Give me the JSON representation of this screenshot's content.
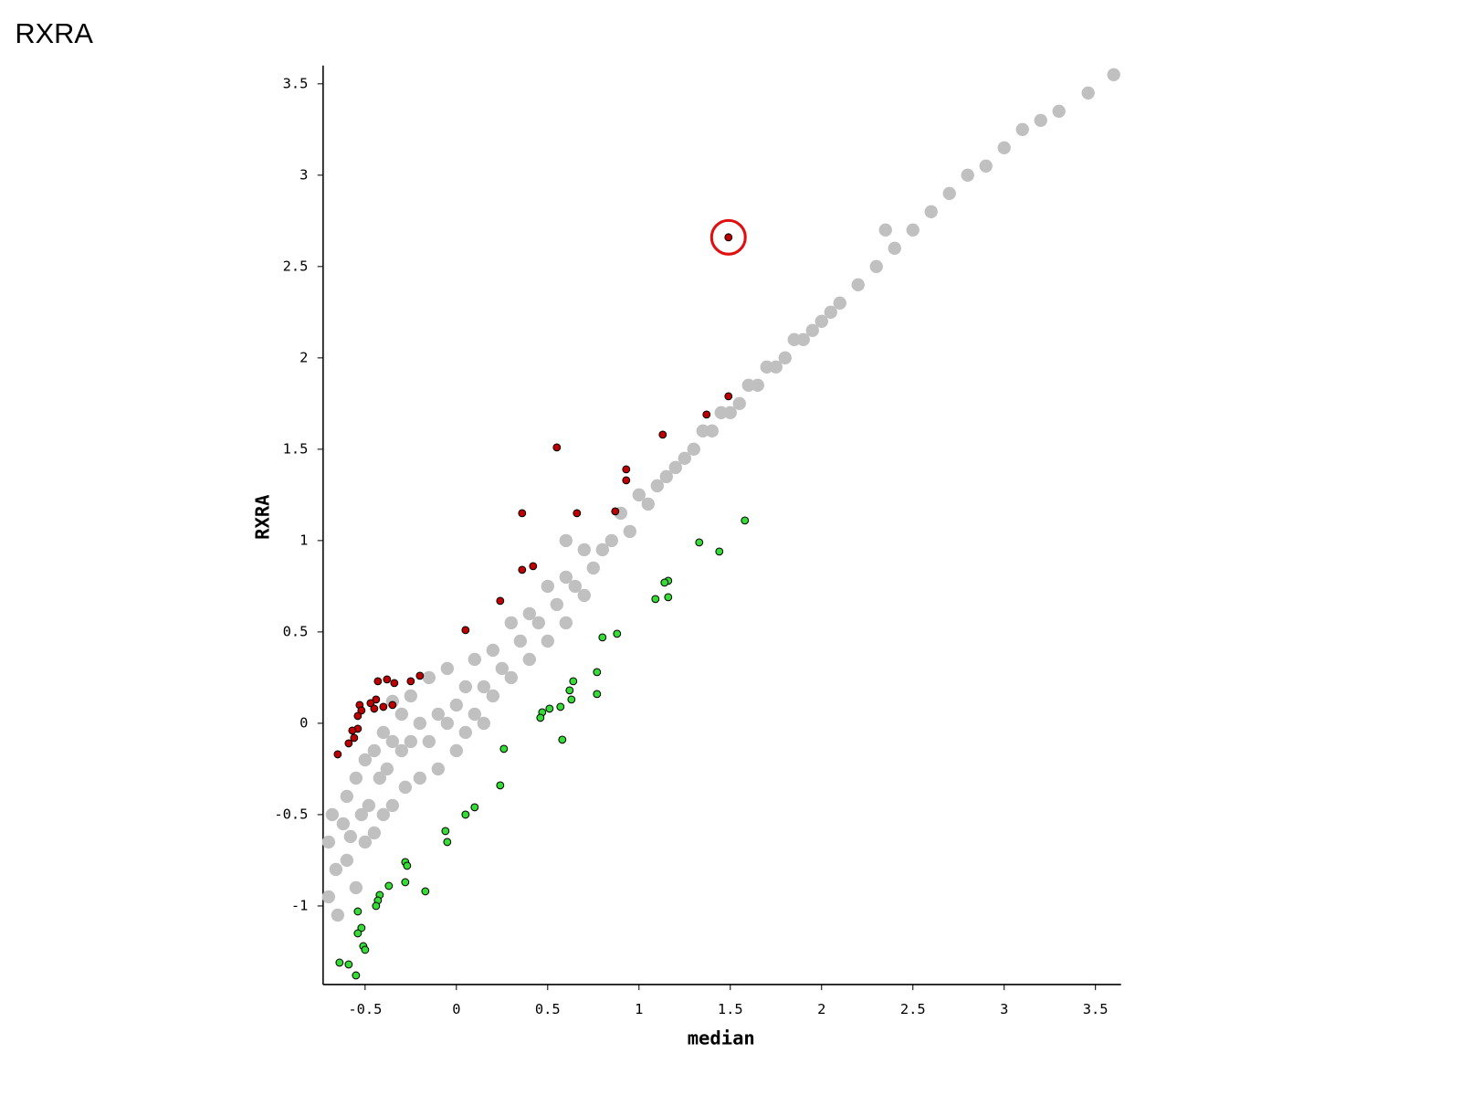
{
  "chart_data": {
    "type": "scatter",
    "title": "RXRA",
    "xlabel": "median",
    "ylabel": "RXRA",
    "xlim": [
      -0.73,
      3.64
    ],
    "ylim": [
      -1.43,
      3.6
    ],
    "xticks": [
      -0.5,
      0,
      0.5,
      1,
      1.5,
      2,
      2.5,
      3,
      3.5
    ],
    "yticks": [
      -1,
      -0.5,
      0,
      0.5,
      1,
      1.5,
      2,
      2.5,
      3,
      3.5
    ],
    "series": [
      {
        "color": "#c0c0c0",
        "edgecolor": "none",
        "x": [
          -0.7,
          -0.68,
          -0.66,
          -0.65,
          -0.62,
          -0.6,
          -0.6,
          -0.58,
          -0.55,
          -0.55,
          -0.52,
          -0.5,
          -0.5,
          -0.48,
          -0.45,
          -0.45,
          -0.42,
          -0.4,
          -0.4,
          -0.38,
          -0.35,
          -0.35,
          -0.3,
          -0.3,
          -0.28,
          -0.25,
          -0.25,
          -0.2,
          -0.2,
          -0.15,
          -0.15,
          -0.1,
          -0.1,
          -0.05,
          -0.05,
          0,
          0,
          0.05,
          0.05,
          0.1,
          0.1,
          0.15,
          0.15,
          0.2,
          0.2,
          0.25,
          0.3,
          0.3,
          0.35,
          0.4,
          0.4,
          0.45,
          0.5,
          0.5,
          0.55,
          0.6,
          0.6,
          0.65,
          0.7,
          0.7,
          0.75,
          0.8,
          0.85,
          0.9,
          0.95,
          1.0,
          1.05,
          1.1,
          1.15,
          1.2,
          1.25,
          1.3,
          1.35,
          1.4,
          1.45,
          1.5,
          1.55,
          1.6,
          1.65,
          1.7,
          1.75,
          1.8,
          1.85,
          1.9,
          1.95,
          2.0,
          2.05,
          2.1,
          2.2,
          2.3,
          2.4,
          2.5,
          2.6,
          2.7,
          2.8,
          2.9,
          3.0,
          3.1,
          3.2,
          3.3,
          3.46,
          3.6,
          -0.35,
          0.6,
          2.35,
          -0.7
        ],
        "y": [
          -0.65,
          -0.5,
          -0.8,
          -1.05,
          -0.55,
          -0.4,
          -0.75,
          -0.62,
          -0.3,
          -0.9,
          -0.5,
          -0.2,
          -0.65,
          -0.45,
          -0.15,
          -0.6,
          -0.3,
          -0.05,
          -0.5,
          -0.25,
          -0.1,
          -0.45,
          -0.15,
          0.05,
          -0.35,
          -0.1,
          0.15,
          0.0,
          -0.3,
          0.25,
          -0.1,
          0.05,
          -0.25,
          0.3,
          0.0,
          0.1,
          -0.15,
          0.2,
          -0.05,
          0.35,
          0.05,
          0.2,
          0.0,
          0.4,
          0.15,
          0.3,
          0.55,
          0.25,
          0.45,
          0.6,
          0.35,
          0.55,
          0.75,
          0.45,
          0.65,
          0.8,
          0.55,
          0.75,
          0.95,
          0.7,
          0.85,
          0.95,
          1.0,
          1.15,
          1.05,
          1.25,
          1.2,
          1.3,
          1.35,
          1.4,
          1.45,
          1.5,
          1.6,
          1.6,
          1.7,
          1.7,
          1.75,
          1.85,
          1.85,
          1.95,
          1.95,
          2.0,
          2.1,
          2.1,
          2.15,
          2.2,
          2.25,
          2.3,
          2.4,
          2.5,
          2.6,
          2.7,
          2.8,
          2.9,
          3.0,
          3.05,
          3.15,
          3.25,
          3.3,
          3.35,
          3.45,
          3.55,
          0.12,
          1.0,
          2.7,
          -0.95
        ]
      },
      {
        "color": "#c00000",
        "edgecolor": "#000000",
        "x": [
          1.49,
          1.49,
          1.37,
          1.13,
          0.55,
          0.93,
          0.93,
          0.36,
          0.66,
          0.87,
          0.42,
          0.36,
          0.24,
          0.05,
          -0.2,
          -0.25,
          -0.38,
          -0.43,
          -0.34,
          -0.44,
          -0.47,
          -0.53,
          -0.35,
          -0.4,
          -0.45,
          -0.52,
          -0.54,
          -0.54,
          -0.57,
          -0.56,
          -0.59,
          -0.65
        ],
        "y": [
          2.66,
          1.79,
          1.69,
          1.58,
          1.51,
          1.39,
          1.33,
          1.15,
          1.15,
          1.16,
          0.86,
          0.84,
          0.67,
          0.51,
          0.26,
          0.23,
          0.24,
          0.23,
          0.22,
          0.13,
          0.11,
          0.1,
          0.1,
          0.09,
          0.08,
          0.07,
          0.04,
          -0.03,
          -0.04,
          -0.08,
          -0.11,
          -0.17
        ]
      },
      {
        "color": "#33dd33",
        "edgecolor": "#000000",
        "x": [
          1.58,
          1.33,
          1.44,
          1.16,
          1.14,
          1.09,
          1.16,
          0.88,
          0.8,
          0.77,
          0.64,
          0.62,
          0.63,
          0.77,
          0.57,
          0.51,
          0.47,
          0.46,
          0.58,
          0.26,
          0.24,
          0.1,
          0.05,
          -0.06,
          -0.05,
          -0.28,
          -0.27,
          -0.28,
          -0.17,
          -0.37,
          -0.42,
          -0.43,
          -0.44,
          -0.54,
          -0.52,
          -0.54,
          -0.51,
          -0.5,
          -0.64,
          -0.59,
          -0.55
        ],
        "y": [
          1.11,
          0.99,
          0.94,
          0.78,
          0.77,
          0.68,
          0.69,
          0.49,
          0.47,
          0.28,
          0.23,
          0.18,
          0.13,
          0.16,
          0.09,
          0.08,
          0.06,
          0.03,
          -0.09,
          -0.14,
          -0.34,
          -0.46,
          -0.5,
          -0.59,
          -0.65,
          -0.76,
          -0.78,
          -0.87,
          -0.92,
          -0.89,
          -0.94,
          -0.97,
          -1.0,
          -1.03,
          -1.12,
          -1.15,
          -1.22,
          -1.24,
          -1.31,
          -1.32,
          -1.38
        ]
      }
    ]
  }
}
